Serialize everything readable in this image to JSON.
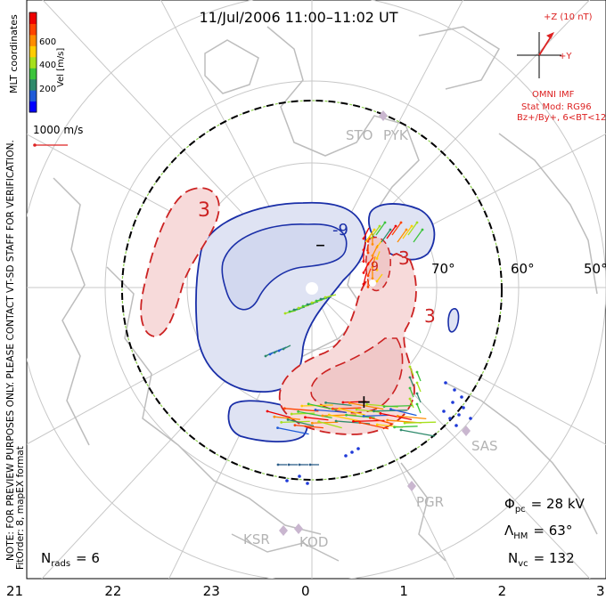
{
  "title": "11/Jul/2006 11:00–11:02 UT",
  "side_notes": {
    "coords": "MLT coordinates",
    "preview": "NOTE: FOR PREVIEW PURPOSES ONLY. PLEASE CONTACT VT-SD STAFF FOR VERIFICATION.",
    "fit": "FitOrder: 8, mapEX format"
  },
  "velocity_scale": {
    "label": "Vel [m/s]",
    "ticks": [
      "600",
      "400",
      "200"
    ],
    "colors": [
      "#0000ff",
      "#1f5bd8",
      "#2e8a6b",
      "#3cc43c",
      "#a6e01c",
      "#ffcc00",
      "#ff8c00",
      "#ff4400",
      "#ee0000"
    ]
  },
  "reference_vector": "1000 m/s",
  "imf": {
    "z_label": "+Z (10 nT)",
    "y_label": "+Y",
    "source": "OMNI IMF",
    "model": "Stat Mod: RG96",
    "condition": "Bz+/By+, 6<BT<12"
  },
  "stations": [
    "STO",
    "PYK",
    "SAS",
    "PGR",
    "KSR",
    "KOD"
  ],
  "latitude_labels": [
    "70°",
    "60°",
    "50°"
  ],
  "contour_labels": {
    "neg": "-9",
    "pos1": "3",
    "pos2": "3",
    "pos3": "3",
    "pos4": "9"
  },
  "stats": {
    "phi_symbol": "Φ",
    "phi_sub": "pc",
    "phi_value": "= 28 kV",
    "lambda_symbol": "Λ",
    "lambda_sub": "HM",
    "lambda_value": "= 63°",
    "nvc_symbol": "N",
    "nvc_sub": "vc",
    "nvc_value": "= 132",
    "nrads_symbol": "N",
    "nrads_sub": "rads",
    "nrads_value": "= 6"
  },
  "mlt_ticks": [
    "21",
    "22",
    "23",
    "0",
    "1",
    "2",
    "3"
  ],
  "colors": {
    "negative_contour": "#1a2fa8",
    "negative_fill": "#dfe3f3",
    "positive_contour": "#cc2222",
    "positive_fill": "#f7dada",
    "land": "#bdbdbd",
    "grid": "#c8c8c8",
    "imf_red": "#dd2222"
  },
  "extremes": {
    "min_symbol": "–",
    "max_symbol": "+"
  }
}
